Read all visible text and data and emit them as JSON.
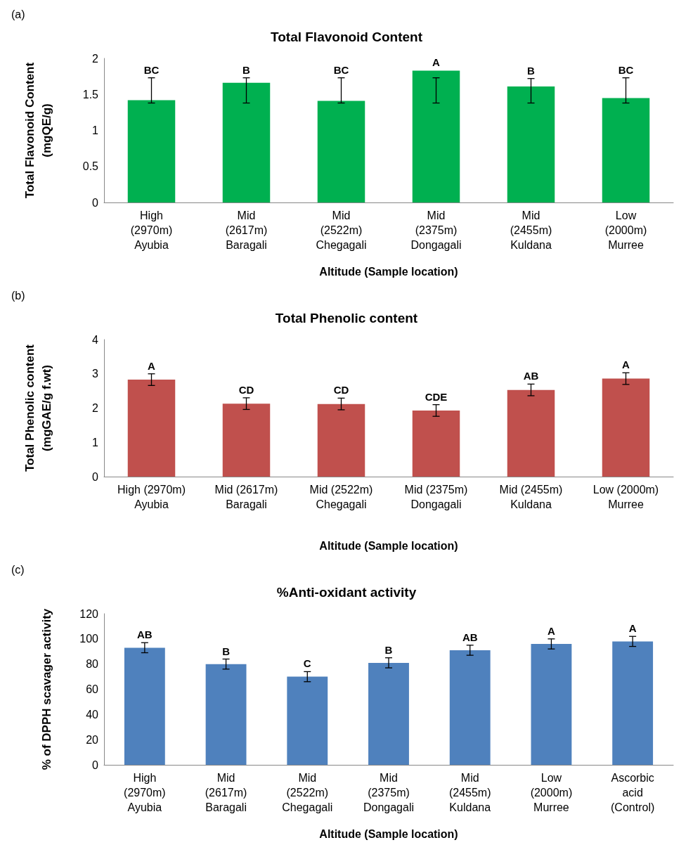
{
  "chart_data": [
    {
      "type": "bar",
      "title": "Total Flavonoid Content",
      "xlabel": "Altitude (Sample location)",
      "ylabel": "Total Flavonoid Content\n(mgQE/g)",
      "categories": [
        "High\n(2970m)\nAyubia",
        "Mid\n(2617m)\nBaragali",
        "Mid\n(2522m)\nChegagali",
        "Mid\n(2375m)\nDongagali",
        "Mid\n(2455m)\nKuldana",
        "Low\n(2000m)\nMurree"
      ],
      "values": [
        1.42,
        1.66,
        1.41,
        1.83,
        1.61,
        1.45
      ],
      "color": "#00b050",
      "errors": [
        [
          1.38,
          1.73
        ],
        [
          1.38,
          1.73
        ],
        [
          1.38,
          1.73
        ],
        [
          1.38,
          1.73
        ],
        [
          1.38,
          1.72
        ],
        [
          1.38,
          1.73
        ]
      ],
      "ylim": [
        0,
        2
      ],
      "yticks": [
        0,
        0.5,
        1,
        1.5,
        2
      ],
      "grid": false,
      "annotations": [
        "(a)",
        {
          "text": "BC",
          "x": "High\n(2970m)\nAyubia",
          "y": 1.73
        },
        {
          "text": "B",
          "x": "Mid\n(2617m)\nBaragali",
          "y": 1.73
        },
        {
          "text": "BC",
          "x": "Mid\n(2522m)\nChegagali",
          "y": 1.73
        },
        {
          "text": "A",
          "x": "Mid\n(2375m)\nDongagali",
          "y": 1.83
        },
        {
          "text": "B",
          "x": "Mid\n(2455m)\nKuldana",
          "y": 1.72
        },
        {
          "text": "BC",
          "x": "Low\n(2000m)\nMurree",
          "y": 1.73
        }
      ]
    },
    {
      "type": "bar",
      "title": "Total Phenolic content",
      "xlabel": "Altitude (Sample location)",
      "ylabel": "Total Phenolic content\n(mgGAE/g f.wt)",
      "categories": [
        "High (2970m)\nAyubia",
        "Mid (2617m)\nBaragali",
        "Mid (2522m)\nChegagali",
        "Mid (2375m)\nDongagali",
        "Mid (2455m)\nKuldana",
        "Low (2000m)\nMurree"
      ],
      "values": [
        2.83,
        2.13,
        2.12,
        1.93,
        2.53,
        2.86
      ],
      "color": "#c0504d",
      "errors": [
        0.17,
        0.17,
        0.17,
        0.17,
        0.17,
        0.17
      ],
      "ylim": [
        0,
        4
      ],
      "yticks": [
        0,
        1,
        2,
        3,
        4
      ],
      "grid": false,
      "annotations": [
        "(b)",
        {
          "text": "A",
          "x": "High (2970m)\nAyubia",
          "y": 3.0
        },
        {
          "text": "CD",
          "x": "Mid (2617m)\nBaragali",
          "y": 2.3
        },
        {
          "text": "CD",
          "x": "Mid (2522m)\nChegagali",
          "y": 2.29
        },
        {
          "text": "CDE",
          "x": "Mid (2375m)\nDongagali",
          "y": 2.1
        },
        {
          "text": "AB",
          "x": "Mid (2455m)\nKuldana",
          "y": 2.7
        },
        {
          "text": "A",
          "x": "Low (2000m)\nMurree",
          "y": 3.03
        }
      ]
    },
    {
      "type": "bar",
      "title": "%Anti-oxidant activity",
      "xlabel": "Altitude (Sample location)",
      "ylabel": "% of DPPH scavager activity",
      "categories": [
        "High\n(2970m)\nAyubia",
        "Mid\n(2617m)\nBaragali",
        "Mid\n(2522m)\nChegagali",
        "Mid\n(2375m)\nDongagali",
        "Mid\n(2455m)\nKuldana",
        "Low\n(2000m)\nMurree",
        "Ascorbic\nacid\n(Control)"
      ],
      "values": [
        93,
        80,
        70,
        81,
        91,
        96,
        98
      ],
      "color": "#4f81bd",
      "errors": [
        4,
        4,
        4,
        4,
        4,
        4,
        4
      ],
      "ylim": [
        0,
        120
      ],
      "yticks": [
        0,
        20,
        40,
        60,
        80,
        100,
        120
      ],
      "grid": false,
      "annotations": [
        "(c)",
        {
          "text": "AB",
          "x": "High\n(2970m)\nAyubia",
          "y": 97
        },
        {
          "text": "B",
          "x": "Mid\n(2617m)\nBaragali",
          "y": 84
        },
        {
          "text": "C",
          "x": "Mid\n(2522m)\nChegagali",
          "y": 74
        },
        {
          "text": "B",
          "x": "Mid\n(2375m)\nDongagali",
          "y": 85
        },
        {
          "text": "AB",
          "x": "Mid\n(2455m)\nKuldana",
          "y": 95
        },
        {
          "text": "A",
          "x": "Low\n(2000m)\nMurree",
          "y": 100
        },
        {
          "text": "A",
          "x": "Ascorbic\nacid\n(Control)",
          "y": 102
        }
      ]
    }
  ]
}
